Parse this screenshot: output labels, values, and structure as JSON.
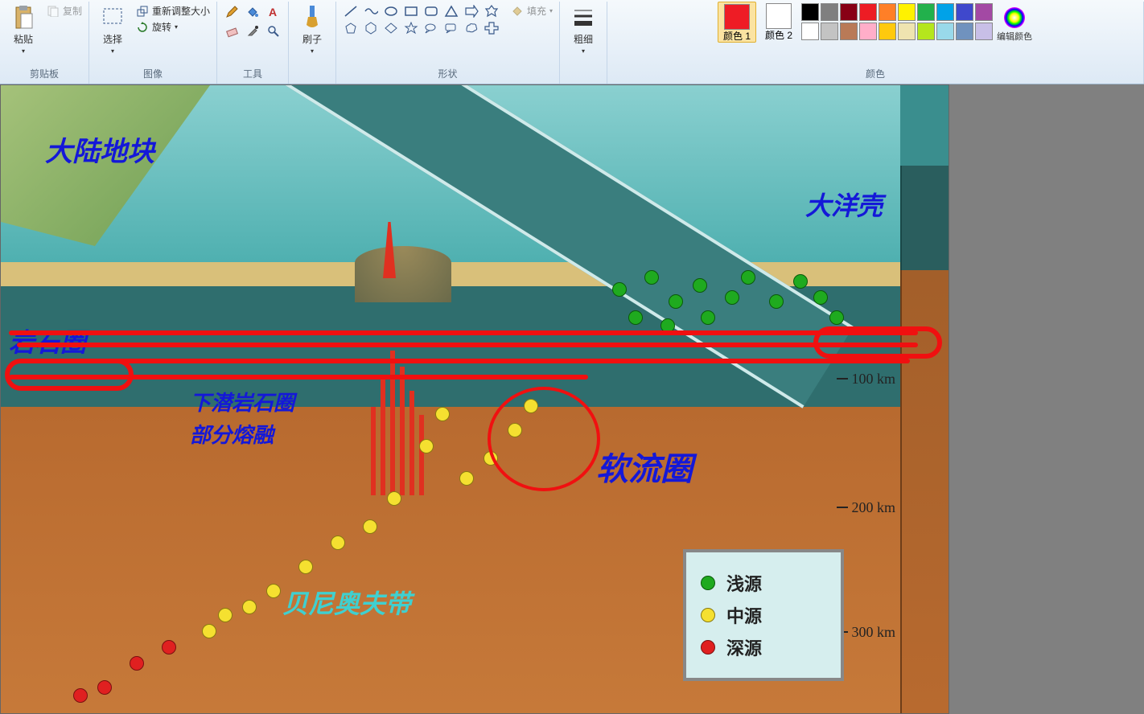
{
  "ribbon": {
    "groups": {
      "clipboard": {
        "label": "剪贴板",
        "paste": "粘贴",
        "copy": "复制"
      },
      "image": {
        "label": "图像",
        "select": "选择",
        "resize": "重新调整大小",
        "rotate": "旋转"
      },
      "tools": {
        "label": "工具"
      },
      "brush": {
        "label": "刷子",
        "btn": "刷子"
      },
      "shapes": {
        "label": "形状",
        "fill": "填充"
      },
      "thickness": {
        "label": "",
        "btn": "粗细"
      },
      "colors": {
        "label": "颜色",
        "c1": "颜色 1",
        "c2": "颜色 2",
        "edit": "编辑颜色"
      }
    },
    "current_color1": "#ee1c25",
    "current_color2": "#ffffff",
    "palette": [
      "#000000",
      "#7f7f7f",
      "#880015",
      "#ed1c24",
      "#ff7f27",
      "#fff200",
      "#22b14c",
      "#00a2e8",
      "#3f48cc",
      "#a349a4",
      "#ffffff",
      "#c3c3c3",
      "#b97a57",
      "#ffaec9",
      "#ffc90e",
      "#efe4b0",
      "#b5e61d",
      "#99d9ea",
      "#7092be",
      "#c8bfe7"
    ]
  },
  "diagram": {
    "labels": {
      "continental_block": "大陆地块",
      "oceanic_crust": "大洋壳",
      "lithosphere": "岩石圈",
      "subducting_slab": "下潜岩石圈",
      "partial_melt": "部分熔融",
      "asthenosphere": "软流圈",
      "benioff_zone": "贝尼奥夫带"
    },
    "depth_ticks": [
      "100 km",
      "200 km",
      "300 km"
    ],
    "legend": {
      "shallow": "浅源",
      "intermediate": "中源",
      "deep": "深源"
    },
    "colors": {
      "annotation": "#f01010",
      "shallow_dot": "#1faa1f",
      "intermediate_dot": "#f5e030",
      "deep_dot": "#e02020",
      "label_blue": "#1418d8"
    }
  }
}
